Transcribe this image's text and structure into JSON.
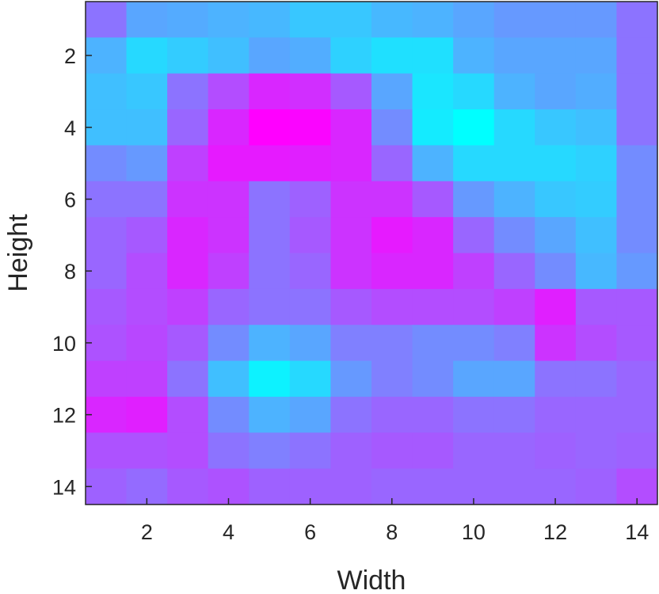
{
  "chart_data": {
    "type": "heatmap",
    "title": "",
    "xlabel": "Width",
    "ylabel": "Height",
    "x": [
      1,
      2,
      3,
      4,
      5,
      6,
      7,
      8,
      9,
      10,
      11,
      12,
      13,
      14
    ],
    "y": [
      1,
      2,
      3,
      4,
      5,
      6,
      7,
      8,
      9,
      10,
      11,
      12,
      13,
      14
    ],
    "xlim": [
      0.5,
      14.5
    ],
    "ylim": [
      0.5,
      14.5
    ],
    "y_direction": "reversed",
    "xticks": [
      2,
      4,
      6,
      8,
      10,
      12,
      14
    ],
    "yticks": [
      2,
      4,
      6,
      8,
      10,
      12,
      14
    ],
    "colormap": "cool",
    "colormap_stops": [
      "#00ffff",
      "#ff00ff"
    ],
    "clim": [
      0,
      1
    ],
    "grid": false,
    "legend": "none",
    "values": [
      [
        0.55,
        0.35,
        0.33,
        0.3,
        0.28,
        0.22,
        0.22,
        0.28,
        0.3,
        0.35,
        0.4,
        0.4,
        0.4,
        0.55
      ],
      [
        0.3,
        0.15,
        0.2,
        0.25,
        0.35,
        0.32,
        0.18,
        0.12,
        0.12,
        0.3,
        0.35,
        0.35,
        0.35,
        0.55
      ],
      [
        0.25,
        0.22,
        0.55,
        0.7,
        0.85,
        0.82,
        0.65,
        0.35,
        0.1,
        0.15,
        0.3,
        0.35,
        0.32,
        0.55
      ],
      [
        0.25,
        0.25,
        0.6,
        0.85,
        1.0,
        0.98,
        0.85,
        0.45,
        0.08,
        0.0,
        0.15,
        0.22,
        0.25,
        0.55
      ],
      [
        0.45,
        0.4,
        0.75,
        0.9,
        0.9,
        0.88,
        0.85,
        0.6,
        0.3,
        0.15,
        0.15,
        0.15,
        0.18,
        0.45
      ],
      [
        0.55,
        0.55,
        0.8,
        0.8,
        0.55,
        0.62,
        0.8,
        0.8,
        0.65,
        0.4,
        0.3,
        0.22,
        0.2,
        0.45
      ],
      [
        0.6,
        0.65,
        0.85,
        0.8,
        0.55,
        0.65,
        0.8,
        0.9,
        0.85,
        0.6,
        0.45,
        0.35,
        0.25,
        0.45
      ],
      [
        0.6,
        0.7,
        0.85,
        0.75,
        0.55,
        0.6,
        0.8,
        0.85,
        0.85,
        0.75,
        0.6,
        0.45,
        0.28,
        0.4
      ],
      [
        0.65,
        0.7,
        0.75,
        0.6,
        0.55,
        0.55,
        0.65,
        0.7,
        0.7,
        0.7,
        0.75,
        0.88,
        0.65,
        0.65
      ],
      [
        0.68,
        0.72,
        0.65,
        0.45,
        0.3,
        0.35,
        0.5,
        0.5,
        0.45,
        0.45,
        0.5,
        0.8,
        0.7,
        0.65
      ],
      [
        0.75,
        0.75,
        0.55,
        0.25,
        0.05,
        0.15,
        0.4,
        0.5,
        0.45,
        0.35,
        0.35,
        0.55,
        0.55,
        0.6
      ],
      [
        0.85,
        0.88,
        0.7,
        0.45,
        0.3,
        0.35,
        0.55,
        0.6,
        0.6,
        0.55,
        0.55,
        0.6,
        0.6,
        0.6
      ],
      [
        0.68,
        0.68,
        0.7,
        0.55,
        0.5,
        0.55,
        0.62,
        0.65,
        0.65,
        0.6,
        0.6,
        0.62,
        0.6,
        0.62
      ],
      [
        0.62,
        0.58,
        0.65,
        0.68,
        0.62,
        0.62,
        0.62,
        0.6,
        0.6,
        0.6,
        0.6,
        0.6,
        0.62,
        0.7
      ]
    ]
  }
}
